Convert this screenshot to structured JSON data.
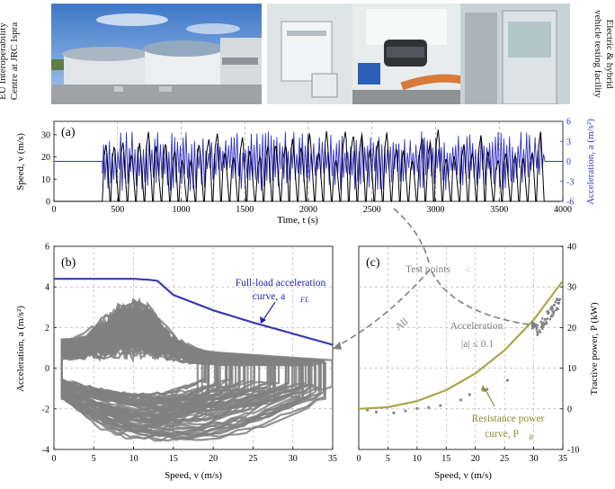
{
  "photos": {
    "left_caption": [
      "EU Interoperability",
      "Centre at JRC Ispra"
    ],
    "right_caption": [
      "Electric & hybrid",
      "vehicle testing facility"
    ]
  },
  "panel_a": {
    "tag": "(a)",
    "ylabel_left": "Speed, v (m/s)",
    "ylabel_right": "Acceleration, a (m/s²)",
    "xlabel": "Time, t (s)"
  },
  "panel_b": {
    "tag": "(b)",
    "ylabel": "Acceleration, a (m/s²)",
    "xlabel": "Speed, v (m/s)",
    "annotation_fl": [
      "Full-load acceleration",
      "curve, a"
    ],
    "annotation_fl_sub": "FL",
    "annotation_all": "All"
  },
  "panel_c": {
    "tag": "(c)",
    "ylabel": "Tractive power, P (kW)",
    "xlabel": "Speed, v (m/s)",
    "annotation_test": "Test points",
    "annotation_acc": [
      "Acceleration",
      "|a| ≤ 0.1"
    ],
    "annotation_res": [
      "Resistance power",
      "curve, P"
    ],
    "annotation_res_sub": "R"
  },
  "colors": {
    "speed": "#000000",
    "acceleration": "#3333cc",
    "scatter": "#808080",
    "full_load": "#3b3bb0",
    "resistance": "#a8a84a",
    "arrow": "#808080"
  },
  "chart_data": [
    {
      "type": "line",
      "name": "panel_a",
      "xlim": [
        0,
        4000
      ],
      "ylim_left": [
        0,
        36
      ],
      "ylim_right": [
        -6,
        6
      ],
      "x_ticks": [
        0,
        500,
        1000,
        1500,
        2000,
        2500,
        3000,
        3500,
        4000
      ],
      "y_ticks_left": [
        0,
        10,
        20,
        30
      ],
      "y_ticks_right": [
        -6,
        -3,
        0,
        3,
        6
      ],
      "speed_trace": {
        "start": 380,
        "end": 3860,
        "peak_speed": 33,
        "approx_cycle_count": 52
      }
    },
    {
      "type": "scatter",
      "name": "panel_b",
      "xlim": [
        0,
        35
      ],
      "ylim": [
        -4,
        6
      ],
      "x_ticks": [
        0,
        5,
        10,
        15,
        20,
        25,
        30,
        35
      ],
      "y_ticks": [
        -4,
        -2,
        0,
        2,
        4,
        6
      ],
      "full_load_curve": {
        "x": [
          0,
          5,
          10,
          12,
          13,
          15,
          20,
          25,
          30,
          35
        ],
        "y": [
          4.4,
          4.4,
          4.4,
          4.35,
          4.3,
          3.6,
          2.85,
          2.25,
          1.7,
          1.15
        ]
      }
    },
    {
      "type": "scatter",
      "name": "panel_c",
      "xlim": [
        0,
        35
      ],
      "ylim": [
        -10,
        40
      ],
      "x_ticks": [
        0,
        5,
        10,
        15,
        20,
        25,
        30,
        35
      ],
      "y_ticks": [
        -10,
        0,
        10,
        20,
        30,
        40
      ],
      "resistance_curve": {
        "x": [
          0,
          5,
          10,
          15,
          20,
          25,
          30,
          35
        ],
        "y": [
          0,
          0.4,
          1.9,
          4.6,
          8.7,
          14.4,
          21.9,
          31.5
        ]
      },
      "test_points": {
        "x": [
          31.5,
          32,
          32.5,
          33,
          33.5,
          34,
          32.2,
          33.2,
          34.3,
          25.5,
          22,
          19,
          17.5,
          14,
          12,
          10,
          8,
          6,
          3,
          1.5
        ],
        "y": [
          20.5,
          22,
          23.5,
          24.5,
          25.5,
          27,
          21,
          23,
          26,
          7,
          4.8,
          3.5,
          2.2,
          0.8,
          0.3,
          0.1,
          -0.5,
          -1,
          -0.8,
          -0.3
        ]
      }
    }
  ]
}
